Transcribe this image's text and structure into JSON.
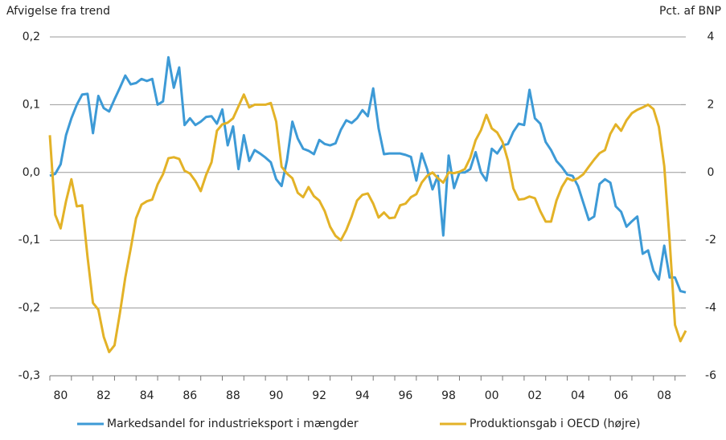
{
  "chart_data": {
    "type": "line",
    "y_label": "Afvigelse fra trend",
    "y2_label": "Pct. af BNP",
    "x": [
      1980,
      1980.25,
      1980.5,
      1980.75,
      1981,
      1981.25,
      1981.5,
      1981.75,
      1982,
      1982.25,
      1982.5,
      1982.75,
      1983,
      1983.25,
      1983.5,
      1983.75,
      1984,
      1984.25,
      1984.5,
      1984.75,
      1985,
      1985.25,
      1985.5,
      1985.75,
      1986,
      1986.25,
      1986.5,
      1986.75,
      1987,
      1987.25,
      1987.5,
      1987.75,
      1988,
      1988.25,
      1988.5,
      1988.75,
      1989,
      1989.25,
      1989.5,
      1989.75,
      1990,
      1990.25,
      1990.5,
      1990.75,
      1991,
      1991.25,
      1991.5,
      1991.75,
      1992,
      1992.25,
      1992.5,
      1992.75,
      1993,
      1993.25,
      1993.5,
      1993.75,
      1994,
      1994.25,
      1994.5,
      1994.75,
      1995,
      1995.25,
      1995.5,
      1995.75,
      1996,
      1996.25,
      1996.5,
      1996.75,
      1997,
      1997.25,
      1997.5,
      1997.75,
      1998,
      1998.25,
      1998.5,
      1998.75,
      1999,
      1999.25,
      1999.5,
      1999.75,
      2000,
      2000.25,
      2000.5,
      2000.75,
      2001,
      2001.25,
      2001.5,
      2001.75,
      2002,
      2002.25,
      2002.5,
      2002.75,
      2003,
      2003.25,
      2003.5,
      2003.75,
      2004,
      2004.25,
      2004.5,
      2004.75,
      2005,
      2005.25,
      2005.5,
      2005.75,
      2006,
      2006.25,
      2006.5,
      2006.75,
      2007,
      2007.25,
      2007.5,
      2007.75,
      2008,
      2008.25,
      2008.5,
      2008.75,
      2009,
      2009.25,
      2009.5
    ],
    "series": [
      {
        "name": "Markedsandel for industrieksport i mængder",
        "color": "#3d9ad6",
        "axis": "y",
        "values": [
          -0.005,
          -0.002,
          0.012,
          0.055,
          0.08,
          0.1,
          0.115,
          0.116,
          0.058,
          0.113,
          0.095,
          0.09,
          0.108,
          0.125,
          0.143,
          0.13,
          0.132,
          0.138,
          0.135,
          0.138,
          0.1,
          0.105,
          0.17,
          0.125,
          0.155,
          0.07,
          0.08,
          0.07,
          0.075,
          0.082,
          0.083,
          0.072,
          0.093,
          0.04,
          0.068,
          0.005,
          0.055,
          0.017,
          0.033,
          0.028,
          0.022,
          0.015,
          -0.01,
          -0.02,
          0.018,
          0.075,
          0.05,
          0.035,
          0.032,
          0.027,
          0.048,
          0.042,
          0.04,
          0.043,
          0.063,
          0.077,
          0.073,
          0.08,
          0.092,
          0.083,
          0.124,
          0.065,
          0.027,
          0.028,
          0.028,
          0.028,
          0.026,
          0.023,
          -0.012,
          0.028,
          0.005,
          -0.025,
          -0.005,
          -0.093,
          0.025,
          -0.023,
          0.0,
          0.0,
          0.005,
          0.03,
          0.0,
          -0.012,
          0.035,
          0.028,
          0.04,
          0.042,
          0.06,
          0.072,
          0.07,
          0.122,
          0.08,
          0.072,
          0.045,
          0.033,
          0.017,
          0.008,
          -0.003,
          -0.005,
          -0.02,
          -0.045,
          -0.07,
          -0.065,
          -0.017,
          -0.01,
          -0.015,
          -0.05,
          -0.058,
          -0.08,
          -0.072,
          -0.065,
          -0.12,
          -0.115,
          -0.145,
          -0.158,
          -0.108,
          -0.155,
          -0.155,
          -0.175,
          -0.177
        ]
      },
      {
        "name": "Produktionsgab i OECD (højre)",
        "color": "#e3b227",
        "axis": "y2",
        "values": [
          1.1,
          -1.25,
          -1.65,
          -0.85,
          -0.2,
          -1.0,
          -0.97,
          -2.5,
          -3.85,
          -4.05,
          -4.85,
          -5.3,
          -5.1,
          -4.15,
          -3.1,
          -2.25,
          -1.35,
          -0.95,
          -0.85,
          -0.8,
          -0.35,
          -0.05,
          0.42,
          0.45,
          0.4,
          0.05,
          -0.03,
          -0.25,
          -0.55,
          -0.07,
          0.3,
          1.23,
          1.42,
          1.47,
          1.6,
          1.95,
          2.3,
          1.92,
          2.0,
          2.0,
          2.0,
          2.05,
          1.5,
          0.17,
          -0.03,
          -0.17,
          -0.6,
          -0.73,
          -0.43,
          -0.7,
          -0.83,
          -1.14,
          -1.6,
          -1.87,
          -2.0,
          -1.7,
          -1.3,
          -0.83,
          -0.66,
          -0.62,
          -0.92,
          -1.33,
          -1.18,
          -1.35,
          -1.33,
          -0.97,
          -0.92,
          -0.73,
          -0.64,
          -0.3,
          -0.1,
          0,
          -0.17,
          -0.3,
          0.0,
          -0.02,
          0.02,
          0.1,
          0.43,
          0.95,
          1.25,
          1.7,
          1.3,
          1.18,
          0.9,
          0.35,
          -0.47,
          -0.8,
          -0.78,
          -0.71,
          -0.76,
          -1.14,
          -1.45,
          -1.45,
          -0.83,
          -0.43,
          -0.17,
          -0.24,
          -0.17,
          -0.05,
          0.17,
          0.38,
          0.57,
          0.66,
          1.14,
          1.42,
          1.23,
          1.54,
          1.75,
          1.85,
          1.92,
          2.0,
          1.87,
          1.35,
          0.19,
          -2.0,
          -4.5,
          -4.98,
          -4.67
        ]
      }
    ],
    "xlim": [
      1980,
      2009.5
    ],
    "xticks": [
      {
        "value": 1980.5,
        "label": "80"
      },
      {
        "value": 1982.5,
        "label": "82"
      },
      {
        "value": 1984.5,
        "label": "84"
      },
      {
        "value": 1986.5,
        "label": "86"
      },
      {
        "value": 1988.5,
        "label": "88"
      },
      {
        "value": 1990.5,
        "label": "90"
      },
      {
        "value": 1992.5,
        "label": "92"
      },
      {
        "value": 1994.5,
        "label": "94"
      },
      {
        "value": 1996.5,
        "label": "96"
      },
      {
        "value": 1998.5,
        "label": "98"
      },
      {
        "value": 2000.5,
        "label": "00"
      },
      {
        "value": 2002.5,
        "label": "02"
      },
      {
        "value": 2004.5,
        "label": "04"
      },
      {
        "value": 2006.5,
        "label": "06"
      },
      {
        "value": 2008.5,
        "label": "08"
      }
    ],
    "xminor_ticks": [
      1980,
      1981,
      1982,
      1983,
      1984,
      1985,
      1986,
      1987,
      1988,
      1989,
      1990,
      1991,
      1992,
      1993,
      1994,
      1995,
      1996,
      1997,
      1998,
      1999,
      2000,
      2001,
      2002,
      2003,
      2004,
      2005,
      2006,
      2007,
      2008,
      2009
    ],
    "ylim": [
      -0.3,
      0.2
    ],
    "yticks": [
      {
        "value": -0.3,
        "label": "-0,3"
      },
      {
        "value": -0.2,
        "label": "-0,2"
      },
      {
        "value": -0.1,
        "label": "-0,1"
      },
      {
        "value": 0,
        "label": "0,0"
      },
      {
        "value": 0.1,
        "label": "0,1"
      },
      {
        "value": 0.2,
        "label": "0,2"
      }
    ],
    "y2lim": [
      -6,
      4
    ],
    "y2ticks": [
      -6,
      -4,
      -2,
      0,
      2,
      4
    ],
    "grid": true,
    "legend": "bottom"
  }
}
